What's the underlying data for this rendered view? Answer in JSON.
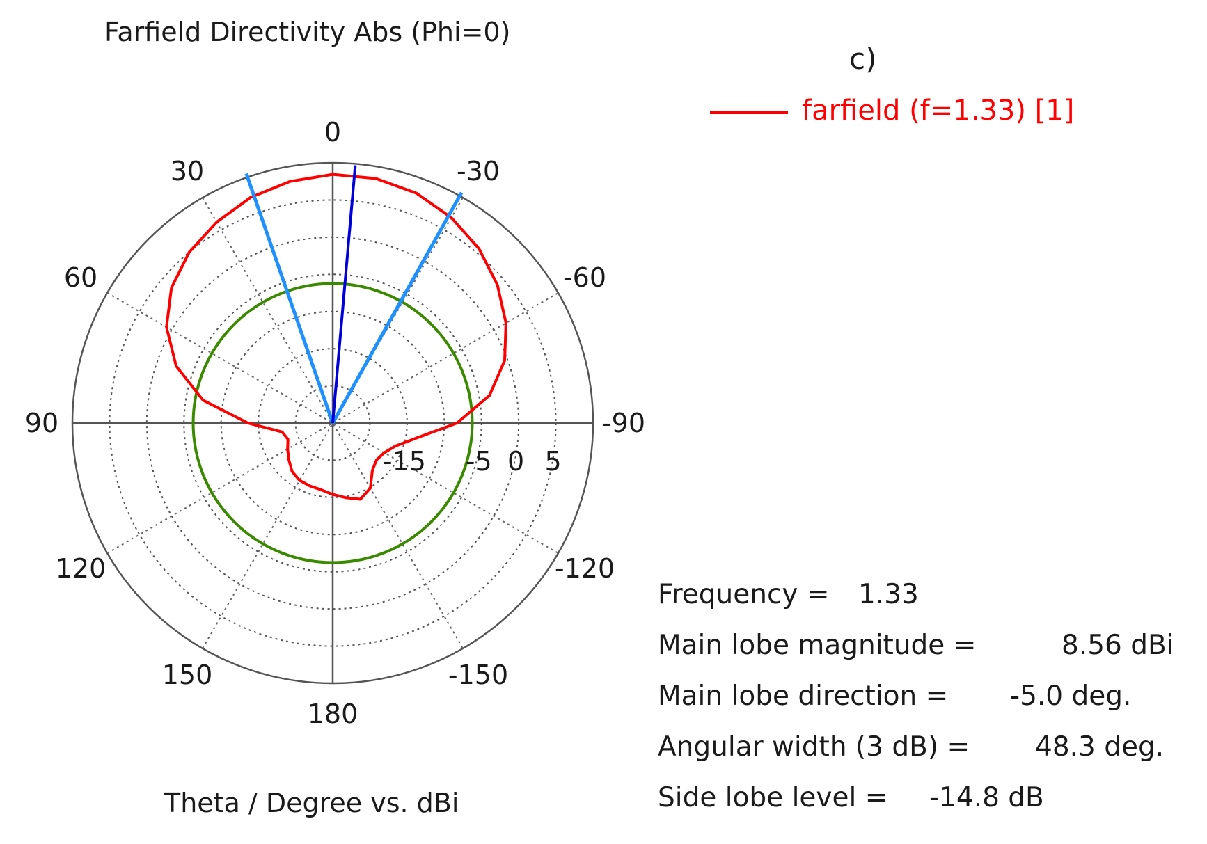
{
  "panel_label": "c)",
  "chart_data": {
    "type": "polar",
    "title": "Farfield Directivity Abs (Phi=0)",
    "xlabel": "Theta / Degree vs. dBi",
    "angle_unit": "deg",
    "angle_ticks": [
      "0",
      "-30",
      "-60",
      "-90",
      "-120",
      "-150",
      "180",
      "150",
      "120",
      "90",
      "60",
      "30"
    ],
    "radial_axis": {
      "min_db": -25,
      "max_db": 10,
      "grid_step_db": 5,
      "tick_labels": [
        "-15",
        "-5",
        "0",
        "5"
      ]
    },
    "series": [
      {
        "name": "farfield (f=1.33) [1]",
        "color": "#ff0000",
        "theta_deg": [
          0,
          -10,
          -20,
          -30,
          -40,
          -50,
          -60,
          -70,
          -80,
          -90,
          -100,
          -110,
          -120,
          -130,
          -140,
          -150,
          -160,
          -170,
          180,
          170,
          160,
          150,
          140,
          130,
          120,
          110,
          100,
          90,
          80,
          70,
          60,
          50,
          40,
          30,
          20,
          10
        ],
        "dbi": [
          8.45,
          8.4,
          7.9,
          6.9,
          5.6,
          3.9,
          1.9,
          -0.4,
          -3.6,
          -8.3,
          -13.5,
          -16,
          -17,
          -17.3,
          -16.7,
          -14.9,
          -14.1,
          -14.8,
          -15.4,
          -15.9,
          -16,
          -16.1,
          -16.5,
          -17.3,
          -18,
          -18.6,
          -18.1,
          -13.6,
          -7.3,
          -2.6,
          0.8,
          3.3,
          5,
          6.2,
          7.3,
          8
        ]
      }
    ],
    "annotations": {
      "main_lobe_direction_deg": -5.0,
      "beamwidth_edges_deg": [
        -29.2,
        19.1
      ],
      "side_lobe_reference_dbi": -6.24,
      "side_lobe_color": "#3a8a00",
      "main_lobe_color": "#0000dd",
      "beamwidth_color": "#1e90ff"
    }
  },
  "legend": {
    "label": "farfield (f=1.33) [1]"
  },
  "info": [
    {
      "label": "Frequency = ",
      "value": "1.33"
    },
    {
      "label": "Main lobe magnitude = ",
      "value": "8.56 dBi"
    },
    {
      "label": "Main lobe direction = ",
      "value": "-5.0 deg."
    },
    {
      "label": "Angular width (3 dB) = ",
      "value": "48.3 deg."
    },
    {
      "label": "Side lobe level = ",
      "value": "-14.8 dB"
    }
  ]
}
